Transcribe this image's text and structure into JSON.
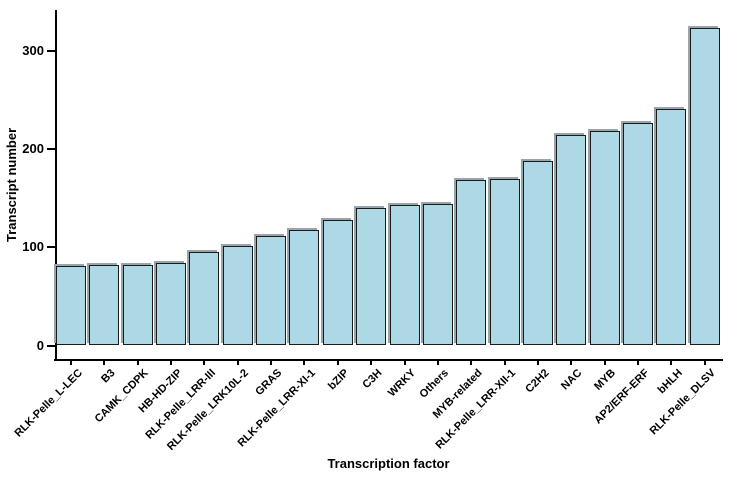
{
  "chart_data": {
    "type": "bar",
    "title": "",
    "xlabel": "Transcription factor",
    "ylabel": "Transcript number",
    "categories": [
      "RLK-Pelle_L-LEC",
      "B3",
      "CAMK_CDPK",
      "HB-HD-ZIP",
      "RLK-Pelle_LRR-III",
      "RLK-Pelle_LRK10L-2",
      "GRAS",
      "RLK-Pelle_LRR-XI-1",
      "bZIP",
      "C3H",
      "WRKY",
      "Others",
      "MYB-related",
      "RLK-Pelle_LRR-XII-1",
      "C2H2",
      "NAC",
      "MYB",
      "AP2/ERF-ERF",
      "bHLH",
      "RLK-Pelle_DLSV"
    ],
    "values": [
      81,
      82,
      82,
      84,
      95,
      101,
      111,
      118,
      128,
      140,
      143,
      144,
      169,
      170,
      188,
      214,
      218,
      227,
      241,
      323
    ],
    "yticks": [
      0,
      100,
      200,
      300
    ],
    "ylim": [
      0,
      342
    ],
    "grid": false,
    "legend": "none",
    "bar_orientation": "vertical",
    "sort_order": "ascending",
    "colors": {
      "bar_fill": "#ADD8E6",
      "bar_edge": "#1a1a1a",
      "bar_shadow": "#97a6ad",
      "axis": "#000000",
      "text": "#000000",
      "background": "#ffffff"
    }
  }
}
